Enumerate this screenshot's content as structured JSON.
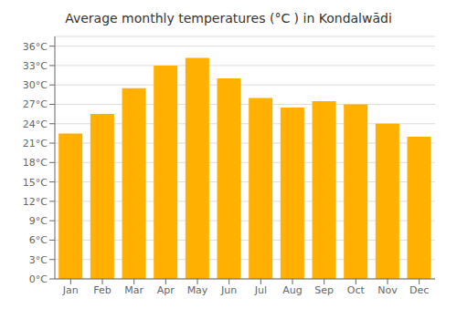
{
  "chart_data": {
    "type": "bar",
    "title": "Average monthly temperatures (°C ) in Kondalwādi",
    "categories": [
      "Jan",
      "Feb",
      "Mar",
      "Apr",
      "May",
      "Jun",
      "Jul",
      "Aug",
      "Sep",
      "Oct",
      "Nov",
      "Dec"
    ],
    "values": [
      22.5,
      25.5,
      29.5,
      33.0,
      34.2,
      31.0,
      28.0,
      26.5,
      27.5,
      27.0,
      24.0,
      22.0
    ],
    "color": "#FFB000",
    "ylim": [
      0,
      37.5
    ],
    "yticks": [
      {
        "value": 0,
        "label": "0°C"
      },
      {
        "value": 3,
        "label": "3°C"
      },
      {
        "value": 6,
        "label": "6°C"
      },
      {
        "value": 9,
        "label": "9°C"
      },
      {
        "value": 12,
        "label": "12°C"
      },
      {
        "value": 15,
        "label": "15°C"
      },
      {
        "value": 18,
        "label": "18°C"
      },
      {
        "value": 21,
        "label": "21°C"
      },
      {
        "value": 24,
        "label": "24°C"
      },
      {
        "value": 27,
        "label": "27°C"
      },
      {
        "value": 30,
        "label": "30°C"
      },
      {
        "value": 33,
        "label": "33°C"
      },
      {
        "value": 36,
        "label": "36°C"
      }
    ],
    "grid": true
  }
}
